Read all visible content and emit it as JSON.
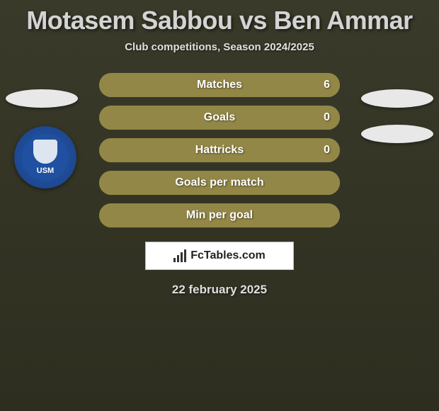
{
  "title": {
    "player1": "Motasem Sabbou",
    "vs": "vs",
    "player2": "Ben Ammar"
  },
  "subtitle": "Club competitions, Season 2024/2025",
  "rows": [
    {
      "label": "Matches",
      "left": "",
      "right": "6",
      "fill_pct": 100,
      "bg": "#928746",
      "empty_bg": "#928746",
      "show_left": false,
      "show_right": true
    },
    {
      "label": "Goals",
      "left": "",
      "right": "0",
      "fill_pct": 100,
      "bg": "#928746",
      "empty_bg": "#928746",
      "show_left": false,
      "show_right": true
    },
    {
      "label": "Hattricks",
      "left": "",
      "right": "0",
      "fill_pct": 100,
      "bg": "#928746",
      "empty_bg": "#928746",
      "show_left": false,
      "show_right": true
    },
    {
      "label": "Goals per match",
      "left": "",
      "right": "",
      "fill_pct": 100,
      "bg": "#928746",
      "empty_bg": "#928746",
      "show_left": false,
      "show_right": false
    },
    {
      "label": "Min per goal",
      "left": "",
      "right": "",
      "fill_pct": 100,
      "bg": "#928746",
      "empty_bg": "#928746",
      "show_left": false,
      "show_right": false
    }
  ],
  "club_logo_text": "USM",
  "brand": "FcTables.com",
  "date": "22 february 2025",
  "colors": {
    "page_bg_top": "#3a3a2a",
    "page_bg_bottom": "#2e2e20",
    "row_fill": "#928746",
    "title_text": "#d4d4d4",
    "badge_bg": "#e8e8e8",
    "club_blue": "#2050a0",
    "brand_box_bg": "#ffffff"
  }
}
